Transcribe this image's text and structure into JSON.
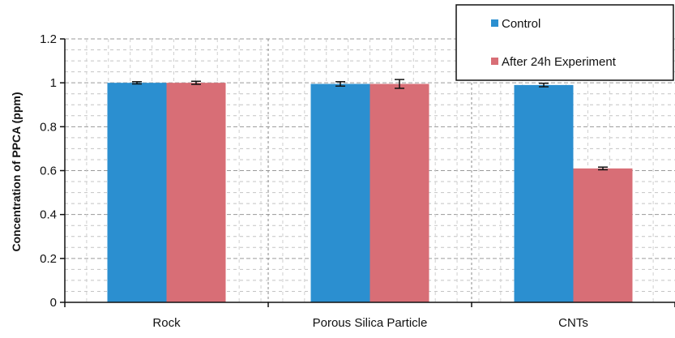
{
  "chart_data": {
    "type": "bar",
    "title": "",
    "xlabel": "",
    "ylabel": "Concentration of PPCA (ppm)",
    "ylim": [
      0,
      1.2
    ],
    "yticks": [
      "0",
      "0.2",
      "0.4",
      "0.6",
      "0.8",
      "1",
      "1.2"
    ],
    "categories": [
      "Rock",
      "Porous Silica Particle",
      "CNTs"
    ],
    "series": [
      {
        "name": "Control",
        "values": [
          1.0,
          0.995,
          0.99
        ],
        "errors": [
          0.005,
          0.01,
          0.008
        ],
        "color": "#2b8fd0"
      },
      {
        "name": "After 24h Experiment",
        "values": [
          1.0,
          0.995,
          0.61
        ],
        "errors": [
          0.007,
          0.02,
          0.006
        ],
        "color": "#d86e76"
      }
    ],
    "grid": true,
    "legend_position": "top-right"
  }
}
